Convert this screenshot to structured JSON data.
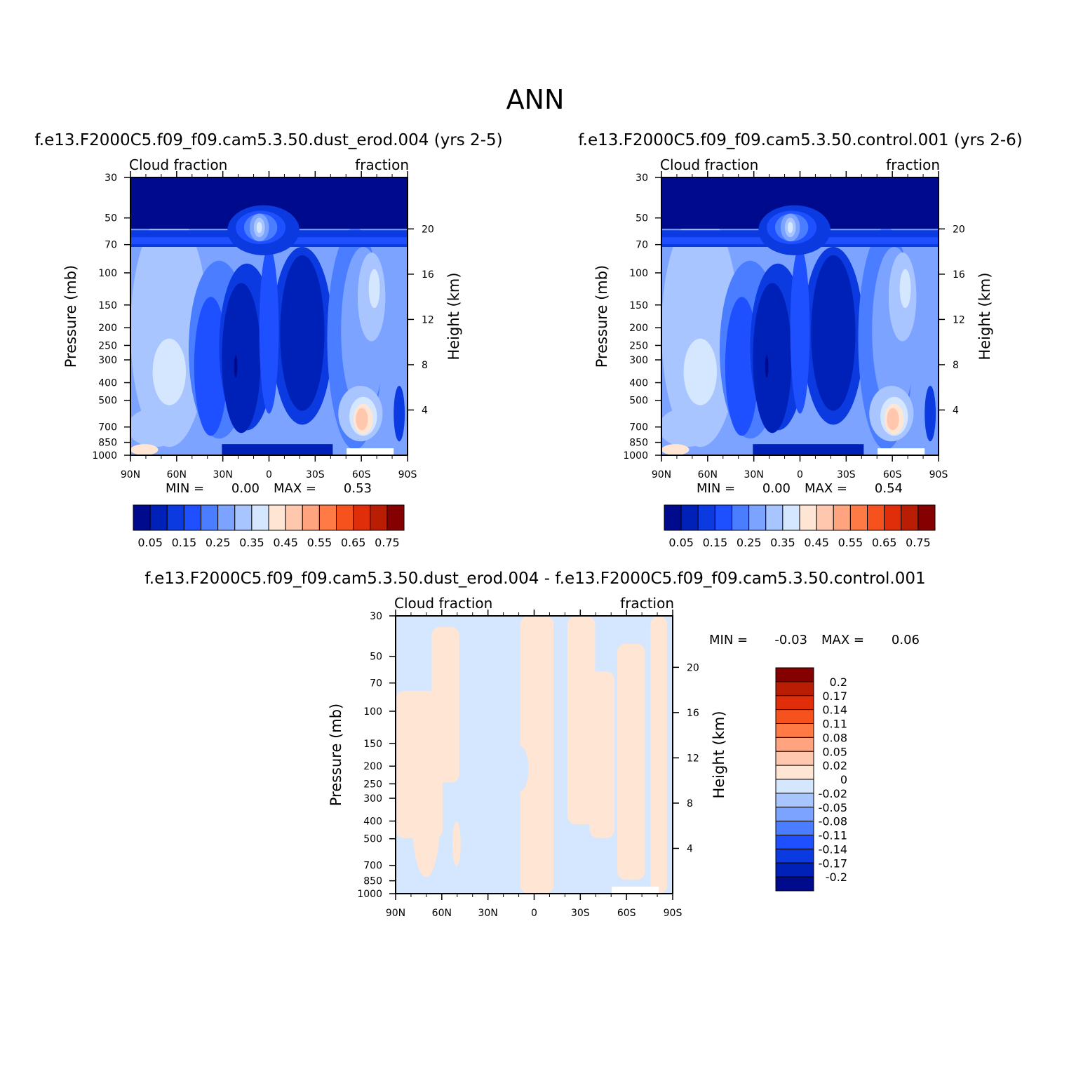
{
  "figure": {
    "title": "ANN"
  },
  "chart_data": [
    {
      "type": "heatmap",
      "panel": "top-left",
      "title": "f.e13.F2000C5.f09_f09.cam5.3.50.dust_erod.004 (yrs 2-5)",
      "left_label": "Cloud fraction",
      "right_label": "fraction",
      "ylabel": "Pressure (mb)",
      "y2label": "Height (km)",
      "x_ticks": [
        "90N",
        "60N",
        "30N",
        "0",
        "30S",
        "60S",
        "90S"
      ],
      "x_tick_values": [
        90,
        60,
        30,
        0,
        -30,
        -60,
        -90
      ],
      "xlim": [
        90,
        -90
      ],
      "y_ticks": [
        "30",
        "50",
        "70",
        "100",
        "150",
        "200",
        "250",
        "300",
        "400",
        "500",
        "700",
        "850",
        "1000"
      ],
      "y_tick_values": [
        30,
        50,
        70,
        100,
        150,
        200,
        250,
        300,
        400,
        500,
        700,
        850,
        1000
      ],
      "ylim": [
        30,
        1000
      ],
      "yscale": "log",
      "y2_ticks": [
        "20",
        "16",
        "12",
        "8",
        "4"
      ],
      "y2_tick_values": [
        20,
        16,
        12,
        8,
        4
      ],
      "stats": {
        "min_label": "MIN =",
        "min": "0.00",
        "max_label": "MAX =",
        "max": "0.53"
      },
      "colorbar": {
        "orientation": "horizontal",
        "labels": [
          "0.05",
          "0.15",
          "0.25",
          "0.35",
          "0.45",
          "0.55",
          "0.65",
          "0.75"
        ],
        "levels": [
          0.05,
          0.1,
          0.15,
          0.2,
          0.25,
          0.3,
          0.35,
          0.4,
          0.45,
          0.5,
          0.55,
          0.6,
          0.65,
          0.7,
          0.75
        ],
        "colors": [
          "#000a8c",
          "#0021b8",
          "#0a3ae0",
          "#1e50ff",
          "#4a7dff",
          "#7ba3ff",
          "#a9c5ff",
          "#d4e7ff",
          "#ffe5d4",
          "#ffc8ae",
          "#ffa47e",
          "#ff7a45",
          "#f5521e",
          "#e02d0a",
          "#b91e05",
          "#850000"
        ]
      }
    },
    {
      "type": "heatmap",
      "panel": "top-right",
      "title": "f.e13.F2000C5.f09_f09.cam5.3.50.control.001 (yrs 2-6)",
      "left_label": "Cloud fraction",
      "right_label": "fraction",
      "ylabel": "Pressure (mb)",
      "y2label": "Height (km)",
      "x_ticks": [
        "90N",
        "60N",
        "30N",
        "0",
        "30S",
        "60S",
        "90S"
      ],
      "x_tick_values": [
        90,
        60,
        30,
        0,
        -30,
        -60,
        -90
      ],
      "xlim": [
        90,
        -90
      ],
      "y_ticks": [
        "30",
        "50",
        "70",
        "100",
        "150",
        "200",
        "250",
        "300",
        "400",
        "500",
        "700",
        "850",
        "1000"
      ],
      "y_tick_values": [
        30,
        50,
        70,
        100,
        150,
        200,
        250,
        300,
        400,
        500,
        700,
        850,
        1000
      ],
      "ylim": [
        30,
        1000
      ],
      "yscale": "log",
      "y2_ticks": [
        "20",
        "16",
        "12",
        "8",
        "4"
      ],
      "y2_tick_values": [
        20,
        16,
        12,
        8,
        4
      ],
      "stats": {
        "min_label": "MIN =",
        "min": "0.00",
        "max_label": "MAX =",
        "max": "0.54"
      },
      "colorbar": {
        "orientation": "horizontal",
        "labels": [
          "0.05",
          "0.15",
          "0.25",
          "0.35",
          "0.45",
          "0.55",
          "0.65",
          "0.75"
        ],
        "levels": [
          0.05,
          0.1,
          0.15,
          0.2,
          0.25,
          0.3,
          0.35,
          0.4,
          0.45,
          0.5,
          0.55,
          0.6,
          0.65,
          0.7,
          0.75
        ],
        "colors": [
          "#000a8c",
          "#0021b8",
          "#0a3ae0",
          "#1e50ff",
          "#4a7dff",
          "#7ba3ff",
          "#a9c5ff",
          "#d4e7ff",
          "#ffe5d4",
          "#ffc8ae",
          "#ffa47e",
          "#ff7a45",
          "#f5521e",
          "#e02d0a",
          "#b91e05",
          "#850000"
        ]
      }
    },
    {
      "type": "heatmap",
      "panel": "bottom",
      "title": "f.e13.F2000C5.f09_f09.cam5.3.50.dust_erod.004 - f.e13.F2000C5.f09_f09.cam5.3.50.control.001",
      "left_label": "Cloud fraction",
      "right_label": "fraction",
      "ylabel": "Pressure (mb)",
      "y2label": "Height (km)",
      "x_ticks": [
        "90N",
        "60N",
        "30N",
        "0",
        "30S",
        "60S",
        "90S"
      ],
      "x_tick_values": [
        90,
        60,
        30,
        0,
        -30,
        -60,
        -90
      ],
      "xlim": [
        90,
        -90
      ],
      "y_ticks": [
        "30",
        "50",
        "70",
        "100",
        "150",
        "200",
        "250",
        "300",
        "400",
        "500",
        "700",
        "850",
        "1000"
      ],
      "y_tick_values": [
        30,
        50,
        70,
        100,
        150,
        200,
        250,
        300,
        400,
        500,
        700,
        850,
        1000
      ],
      "ylim": [
        30,
        1000
      ],
      "yscale": "log",
      "y2_ticks": [
        "20",
        "16",
        "12",
        "8",
        "4"
      ],
      "y2_tick_values": [
        20,
        16,
        12,
        8,
        4
      ],
      "stats": {
        "min_label": "MIN =",
        "min": "-0.03",
        "max_label": "MAX =",
        "max": "0.06"
      },
      "colorbar": {
        "orientation": "vertical",
        "labels": [
          "0.2",
          "0.17",
          "0.14",
          "0.11",
          "0.08",
          "0.05",
          "0.02",
          "0",
          "-0.02",
          "-0.05",
          "-0.08",
          "-0.11",
          "-0.14",
          "-0.17",
          "-0.2"
        ],
        "levels": [
          0.2,
          0.17,
          0.14,
          0.11,
          0.08,
          0.05,
          0.02,
          0,
          -0.02,
          -0.05,
          -0.08,
          -0.11,
          -0.14,
          -0.17,
          -0.2
        ],
        "colors": [
          "#850000",
          "#b91e05",
          "#e02d0a",
          "#f5521e",
          "#ff7a45",
          "#ffa47e",
          "#ffc8ae",
          "#ffe5d4",
          "#d4e7ff",
          "#a9c5ff",
          "#7ba3ff",
          "#4a7dff",
          "#1e50ff",
          "#0a3ae0",
          "#0021b8",
          "#000a8c"
        ]
      }
    }
  ]
}
